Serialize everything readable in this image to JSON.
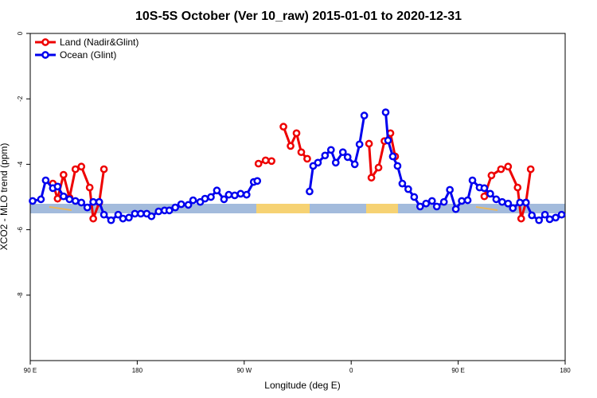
{
  "chart_data": {
    "type": "line",
    "title": "10S-5S October (Ver 10_raw)   2015-01-01 to 2020-12-31",
    "x_label": "Longitude (deg E)",
    "y_label": "XCO2 - MLO trend (ppm)",
    "xlim": [
      90,
      540
    ],
    "xticks": [
      {
        "value": 90,
        "label": "90 E"
      },
      180,
      {
        "value": 270,
        "label": "90 W"
      },
      {
        "value": 360,
        "label": "0"
      },
      {
        "value": 450,
        "label": "90 E"
      },
      {
        "value": 540,
        "label": "180"
      }
    ],
    "ylim": [
      -10,
      0
    ],
    "yticks": [
      0,
      -2,
      -4,
      -6,
      -8
    ],
    "legend": "top-left",
    "series": [
      {
        "name": "Land (Nadir&Glint)",
        "color": "#ee0000",
        "x": [
          109,
          113,
          118,
          123,
          128,
          133,
          140,
          143,
          148,
          152,
          null,
          282,
          288,
          293,
          null,
          303,
          309,
          314,
          318,
          323,
          null,
          375,
          377,
          383,
          388,
          393,
          397,
          null,
          472,
          478,
          486,
          492,
          500,
          503,
          507,
          511
        ],
        "values": [
          -4.59,
          -5.05,
          -4.32,
          -5.02,
          -4.15,
          -4.07,
          -4.71,
          -5.66,
          -5.17,
          -4.15,
          null,
          -3.98,
          -3.88,
          -3.9,
          null,
          -2.85,
          -3.44,
          -3.05,
          -3.63,
          -3.83,
          null,
          -3.37,
          -4.41,
          -4.1,
          -3.29,
          -3.05,
          -3.76,
          null,
          -4.98,
          -4.34,
          -4.15,
          -4.07,
          -4.71,
          -5.66,
          -5.17,
          -4.15
        ]
      },
      {
        "name": "Ocean (Glint)",
        "color": "#0000ee",
        "x": [
          92,
          99,
          103,
          109,
          113,
          118,
          123,
          128,
          133,
          138,
          143,
          148,
          152,
          158,
          164,
          168,
          173,
          178,
          183,
          188,
          192,
          198,
          203,
          207,
          212,
          217,
          223,
          227,
          233,
          237,
          242,
          247,
          253,
          257,
          262,
          267,
          272,
          278,
          281,
          null,
          325,
          328,
          332,
          338,
          343,
          347,
          353,
          357,
          363,
          367,
          371,
          null,
          389,
          391,
          395,
          399,
          403,
          408,
          413,
          418,
          423,
          428,
          432,
          438,
          443,
          448,
          453,
          458,
          462,
          468,
          472,
          477,
          482,
          487,
          492,
          496,
          502,
          507,
          512,
          518,
          523,
          527,
          532,
          537
        ],
        "values": [
          -5.12,
          -5.07,
          -4.49,
          -4.73,
          -4.68,
          -4.98,
          -5.07,
          -5.12,
          -5.17,
          -5.32,
          -5.15,
          -5.15,
          -5.54,
          -5.71,
          -5.54,
          -5.66,
          -5.63,
          -5.51,
          -5.51,
          -5.51,
          -5.59,
          -5.44,
          -5.41,
          -5.41,
          -5.32,
          -5.22,
          -5.24,
          -5.1,
          -5.15,
          -5.05,
          -5.0,
          -4.8,
          -5.07,
          -4.93,
          -4.95,
          -4.9,
          -4.93,
          -4.54,
          -4.51,
          null,
          -4.83,
          -4.05,
          -3.95,
          -3.73,
          -3.56,
          -3.95,
          -3.63,
          -3.78,
          -4.0,
          -3.39,
          -2.51,
          null,
          -2.41,
          -3.27,
          -3.76,
          -4.05,
          -4.59,
          -4.76,
          -5.0,
          -5.29,
          -5.2,
          -5.12,
          -5.29,
          -5.15,
          -4.78,
          -5.37,
          -5.12,
          -5.1,
          -4.49,
          -4.71,
          -4.73,
          -4.9,
          -5.07,
          -5.15,
          -5.2,
          -5.34,
          -5.17,
          -5.17,
          -5.56,
          -5.71,
          -5.54,
          -5.68,
          -5.63,
          -5.54
        ]
      }
    ]
  }
}
